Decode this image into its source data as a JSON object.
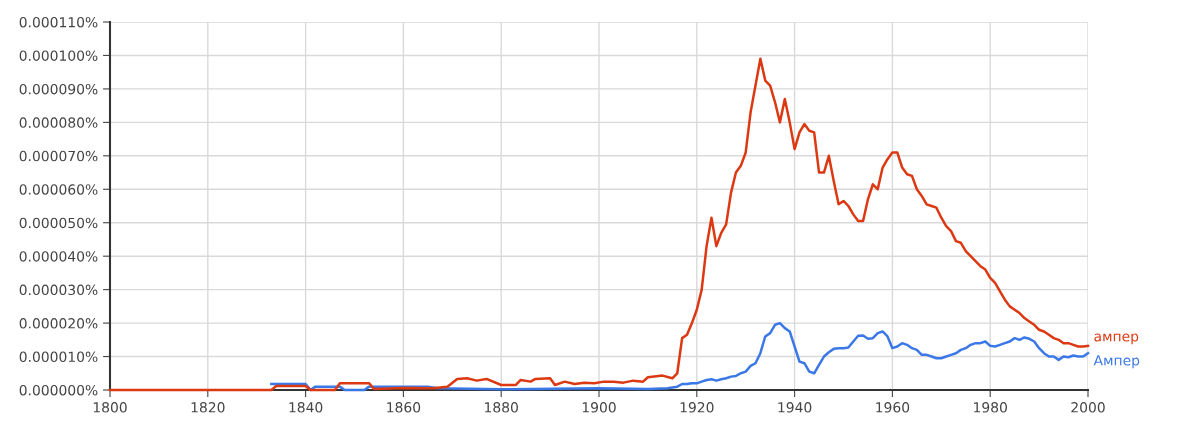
{
  "chart_data": {
    "type": "line",
    "xlim": [
      1800,
      2000
    ],
    "xticks": [
      1800,
      1820,
      1840,
      1860,
      1880,
      1900,
      1920,
      1940,
      1960,
      1980,
      2000
    ],
    "ylim": [
      0,
      0.00011
    ],
    "yticks": [
      {
        "value": 0,
        "label": "0.000000%"
      },
      {
        "value": 1e-05,
        "label": "0.000010%"
      },
      {
        "value": 2e-05,
        "label": "0.000020%"
      },
      {
        "value": 3e-05,
        "label": "0.000030%"
      },
      {
        "value": 4e-05,
        "label": "0.000040%"
      },
      {
        "value": 5e-05,
        "label": "0.000050%"
      },
      {
        "value": 6e-05,
        "label": "0.000060%"
      },
      {
        "value": 7e-05,
        "label": "0.000070%"
      },
      {
        "value": 8e-05,
        "label": "0.000080%"
      },
      {
        "value": 9e-05,
        "label": "0.000090%"
      },
      {
        "value": 0.0001,
        "label": "0.000100%"
      },
      {
        "value": 0.00011,
        "label": "0.000110%"
      }
    ],
    "grid": true,
    "legend": false,
    "marker": "none",
    "line_style": "solid",
    "series": [
      {
        "name": "ампер",
        "color": "#dc3912",
        "x": [
          1800,
          1833,
          1834,
          1840,
          1841,
          1846,
          1847,
          1853,
          1854,
          1860,
          1866,
          1869,
          1871,
          1873,
          1875,
          1877,
          1880,
          1883,
          1884,
          1886,
          1887,
          1890,
          1891,
          1893,
          1895,
          1897,
          1899,
          1901,
          1903,
          1905,
          1907,
          1909,
          1910,
          1913,
          1915,
          1916,
          1917,
          1918,
          1919,
          1920,
          1921,
          1922,
          1923,
          1924,
          1925,
          1926,
          1927,
          1928,
          1929,
          1930,
          1931,
          1932,
          1933,
          1934,
          1935,
          1936,
          1937,
          1938,
          1939,
          1940,
          1941,
          1942,
          1943,
          1944,
          1945,
          1946,
          1947,
          1948,
          1949,
          1950,
          1951,
          1952,
          1953,
          1954,
          1955,
          1956,
          1957,
          1958,
          1959,
          1960,
          1961,
          1962,
          1963,
          1964,
          1965,
          1966,
          1967,
          1968,
          1969,
          1970,
          1971,
          1972,
          1973,
          1974,
          1975,
          1976,
          1977,
          1978,
          1979,
          1980,
          1981,
          1982,
          1983,
          1984,
          1985,
          1986,
          1987,
          1988,
          1989,
          1990,
          1991,
          1992,
          1993,
          1994,
          1995,
          1996,
          1997,
          1998,
          1999,
          2000
        ],
        "values": [
          0,
          0,
          1.2e-06,
          1.2e-06,
          0,
          0,
          2e-06,
          2e-06,
          3e-07,
          6e-07,
          5e-07,
          1e-06,
          3.3e-06,
          3.5e-06,
          2.8e-06,
          3.3e-06,
          1.5e-06,
          1.5e-06,
          3e-06,
          2.5e-06,
          3.3e-06,
          3.5e-06,
          1.5e-06,
          2.5e-06,
          1.8e-06,
          2.2e-06,
          2e-06,
          2.5e-06,
          2.5e-06,
          2.2e-06,
          2.8e-06,
          2.5e-06,
          3.8e-06,
          4.3e-06,
          3.5e-06,
          5e-06,
          1.55e-05,
          1.65e-05,
          2e-05,
          2.4e-05,
          3e-05,
          4.3e-05,
          5.15e-05,
          4.3e-05,
          4.7e-05,
          4.95e-05,
          5.9e-05,
          6.5e-05,
          6.7e-05,
          7.1e-05,
          8.3e-05,
          9.1e-05,
          9.9e-05,
          9.25e-05,
          9.1e-05,
          8.6e-05,
          8e-05,
          8.7e-05,
          8e-05,
          7.2e-05,
          7.7e-05,
          7.95e-05,
          7.75e-05,
          7.7e-05,
          6.5e-05,
          6.5e-05,
          7e-05,
          6.25e-05,
          5.55e-05,
          5.65e-05,
          5.5e-05,
          5.25e-05,
          5.05e-05,
          5.05e-05,
          5.7e-05,
          6.15e-05,
          6e-05,
          6.65e-05,
          6.9e-05,
          7.1e-05,
          7.1e-05,
          6.65e-05,
          6.45e-05,
          6.4e-05,
          6e-05,
          5.8e-05,
          5.55e-05,
          5.5e-05,
          5.45e-05,
          5.15e-05,
          4.9e-05,
          4.75e-05,
          4.45e-05,
          4.4e-05,
          4.15e-05,
          4e-05,
          3.85e-05,
          3.7e-05,
          3.6e-05,
          3.35e-05,
          3.2e-05,
          2.95e-05,
          2.7e-05,
          2.5e-05,
          2.4e-05,
          2.3e-05,
          2.15e-05,
          2.05e-05,
          1.95e-05,
          1.8e-05,
          1.75e-05,
          1.65e-05,
          1.55e-05,
          1.5e-05,
          1.4e-05,
          1.4e-05,
          1.35e-05,
          1.3e-05,
          1.3e-05,
          1.32e-05
        ]
      },
      {
        "name": "Ампер",
        "color": "#3b78e7",
        "x": [
          1833,
          1840,
          1841,
          1842,
          1847,
          1848,
          1852,
          1853,
          1865,
          1867,
          1880,
          1900,
          1910,
          1914,
          1916,
          1917,
          1918,
          1919,
          1920,
          1921,
          1922,
          1923,
          1924,
          1925,
          1926,
          1927,
          1928,
          1929,
          1930,
          1931,
          1932,
          1933,
          1934,
          1935,
          1936,
          1937,
          1938,
          1939,
          1940,
          1941,
          1942,
          1943,
          1944,
          1945,
          1946,
          1947,
          1948,
          1949,
          1950,
          1951,
          1952,
          1953,
          1954,
          1955,
          1956,
          1957,
          1958,
          1959,
          1960,
          1961,
          1962,
          1963,
          1964,
          1965,
          1966,
          1967,
          1968,
          1969,
          1970,
          1971,
          1972,
          1973,
          1974,
          1975,
          1976,
          1977,
          1978,
          1979,
          1980,
          1981,
          1982,
          1983,
          1984,
          1985,
          1986,
          1987,
          1988,
          1989,
          1990,
          1991,
          1992,
          1993,
          1994,
          1995,
          1996,
          1997,
          1998,
          1999,
          2000
        ],
        "values": [
          1.8e-06,
          1.8e-06,
          0,
          1e-06,
          1e-06,
          0,
          0,
          1e-06,
          1e-06,
          5e-07,
          2e-07,
          5e-07,
          3e-07,
          5e-07,
          1e-06,
          1.8e-06,
          1.8e-06,
          2e-06,
          2e-06,
          2.5e-06,
          3e-06,
          3.2e-06,
          2.8e-06,
          3.2e-06,
          3.5e-06,
          4e-06,
          4.2e-06,
          5e-06,
          5.5e-06,
          7.2e-06,
          8e-06,
          1.1e-05,
          1.6e-05,
          1.7e-05,
          1.95e-05,
          2e-05,
          1.85e-05,
          1.75e-05,
          1.3e-05,
          8.5e-06,
          8e-06,
          5.5e-06,
          5e-06,
          7.5e-06,
          1e-05,
          1.13e-05,
          1.23e-05,
          1.25e-05,
          1.25e-05,
          1.27e-05,
          1.45e-05,
          1.62e-05,
          1.63e-05,
          1.53e-05,
          1.55e-05,
          1.7e-05,
          1.75e-05,
          1.6e-05,
          1.25e-05,
          1.3e-05,
          1.4e-05,
          1.35e-05,
          1.25e-05,
          1.2e-05,
          1.05e-05,
          1.05e-05,
          1e-05,
          9.5e-06,
          9.5e-06,
          1e-05,
          1.05e-05,
          1.1e-05,
          1.2e-05,
          1.25e-05,
          1.35e-05,
          1.4e-05,
          1.4e-05,
          1.45e-05,
          1.32e-05,
          1.3e-05,
          1.35e-05,
          1.4e-05,
          1.45e-05,
          1.55e-05,
          1.5e-05,
          1.57e-05,
          1.53e-05,
          1.45e-05,
          1.25e-05,
          1.1e-05,
          1e-05,
          1e-05,
          9e-06,
          1e-05,
          9.8e-06,
          1.03e-05,
          1e-05,
          1e-05,
          1.1e-05
        ]
      }
    ]
  }
}
